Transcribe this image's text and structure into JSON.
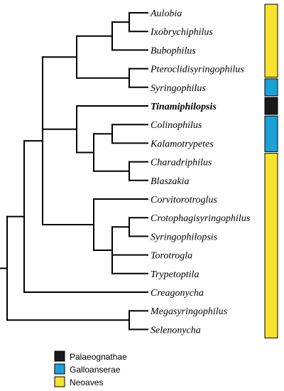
{
  "taxa": [
    {
      "label": "Aulobia",
      "bold": false
    },
    {
      "label": "Ixobrychiphilus",
      "bold": false
    },
    {
      "label": "Bubophilus",
      "bold": false
    },
    {
      "label": "Pteroclidisyringophilus",
      "bold": false
    },
    {
      "label": "Syringophilus",
      "bold": false
    },
    {
      "label": "Tinamiphilopsis",
      "bold": true
    },
    {
      "label": "Colinophilus",
      "bold": false
    },
    {
      "label": "Kalamotrypetes",
      "bold": false
    },
    {
      "label": "Charadriphilus",
      "bold": false
    },
    {
      "label": "Blaszakia",
      "bold": false
    },
    {
      "label": "Corvitorotroglus",
      "bold": false
    },
    {
      "label": "Crotophagisyringophilus",
      "bold": false
    },
    {
      "label": "Syringophilopsis",
      "bold": false
    },
    {
      "label": "Torotrogla",
      "bold": false
    },
    {
      "label": "Trypetoptila",
      "bold": false
    },
    {
      "label": "Creagonycha",
      "bold": false
    },
    {
      "label": "Megasyringophilus",
      "bold": false
    },
    {
      "label": "Selenonycha",
      "bold": false
    }
  ],
  "legend": [
    {
      "label": "Palaeognathae",
      "color": "#1a1a1a"
    },
    {
      "label": "Galloanserae",
      "color": "#1ba1d6"
    },
    {
      "label": "Neoaves",
      "color": "#f7e22e"
    }
  ],
  "host_bars": [
    {
      "group": "Neoaves",
      "from_taxon": 0,
      "to_taxon": 3
    },
    {
      "group": "Galloanserae",
      "from_taxon": 4,
      "to_taxon": 4
    },
    {
      "group": "Palaeognathae",
      "from_taxon": 5,
      "to_taxon": 5
    },
    {
      "group": "Galloanserae",
      "from_taxon": 6,
      "to_taxon": 7
    },
    {
      "group": "Neoaves",
      "from_taxon": 8,
      "to_taxon": 17
    }
  ],
  "colors": {
    "branch": "#000000",
    "Palaeognathae": "#1a1a1a",
    "Galloanserae": "#1ba1d6",
    "Neoaves": "#f7e22e"
  }
}
